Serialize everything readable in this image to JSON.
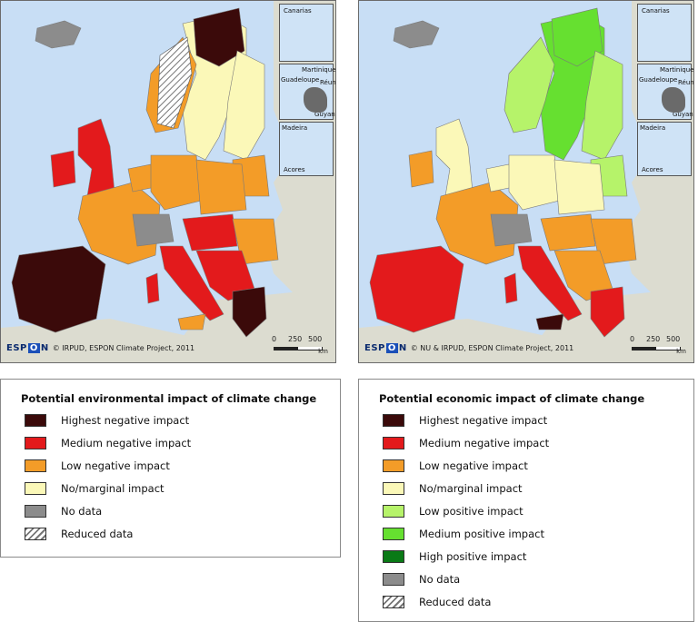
{
  "colors": {
    "sea": "#c8def5",
    "non_espon_land": "#dcdcd0",
    "highest_negative": "#3b0a0a",
    "medium_negative": "#e31a1c",
    "low_negative": "#f39c28",
    "marginal": "#fbf8b8",
    "low_positive": "#b6f36a",
    "medium_positive": "#66e030",
    "high_positive": "#0a7a16",
    "no_data": "#8c8c8c"
  },
  "maps": [
    {
      "id": "environmental",
      "credit": "© IRPUD, ESPON Climate Project, 2011",
      "logo": {
        "pre": "ESP",
        "o": "O",
        "post": "N"
      },
      "insets": [
        "Canarias",
        "Guadeloupe",
        "Martinique",
        "Réunion",
        "Guyane",
        "Madeira",
        "Acores"
      ],
      "scale": {
        "ticks": [
          "0",
          "250",
          "500"
        ],
        "unit": "km"
      },
      "regions": {
        "iberia": "highest_negative",
        "france": "low_negative",
        "uk": "medium_negative",
        "ireland": "medium_negative",
        "benelux": "low_negative",
        "germany": "low_negative",
        "alps": "no_data",
        "poland": "low_negative",
        "italy": "medium_negative",
        "balkans": "medium_negative",
        "greece": "highest_negative",
        "scandinavia": "marginal",
        "norway_coast": "low_negative",
        "finland": "marginal",
        "lapland": "highest_negative",
        "baltic": "low_negative",
        "hungary": "medium_negative",
        "romania": "low_negative",
        "iceland": "no_data",
        "sardinia": "medium_negative",
        "sicily": "low_negative"
      }
    },
    {
      "id": "economic",
      "credit": "© NU & IRPUD, ESPON Climate Project, 2011",
      "logo": {
        "pre": "ESP",
        "o": "O",
        "post": "N"
      },
      "insets": [
        "Canarias",
        "Guadeloupe",
        "Martinique",
        "Réunion",
        "Guyane",
        "Madeira",
        "Acores"
      ],
      "scale": {
        "ticks": [
          "0",
          "250",
          "500"
        ],
        "unit": "km"
      },
      "regions": {
        "iberia": "medium_negative",
        "france": "low_negative",
        "uk": "marginal",
        "ireland": "low_negative",
        "benelux": "marginal",
        "germany": "marginal",
        "alps": "no_data",
        "poland": "marginal",
        "italy": "medium_negative",
        "balkans": "low_negative",
        "greece": "medium_negative",
        "scandinavia": "medium_positive",
        "norway_coast": "low_positive",
        "finland": "low_positive",
        "lapland": "medium_positive",
        "baltic": "low_positive",
        "hungary": "low_negative",
        "romania": "low_negative",
        "iceland": "no_data",
        "sardinia": "medium_negative",
        "sicily": "highest_negative"
      }
    }
  ],
  "legends": [
    {
      "title": "Potential environmental impact of climate change",
      "items": [
        {
          "label": "Highest negative impact",
          "color": "#3b0a0a"
        },
        {
          "label": "Medium negative impact",
          "color": "#e31a1c"
        },
        {
          "label": "Low negative impact",
          "color": "#f39c28"
        },
        {
          "label": "No/marginal impact",
          "color": "#fbf8b8"
        },
        {
          "label": "No data",
          "color": "#8c8c8c"
        },
        {
          "label": "Reduced data",
          "color": "hatch"
        }
      ]
    },
    {
      "title": "Potential economic impact of climate change",
      "items": [
        {
          "label": "Highest negative impact",
          "color": "#3b0a0a"
        },
        {
          "label": "Medium negative impact",
          "color": "#e31a1c"
        },
        {
          "label": "Low negative impact",
          "color": "#f39c28"
        },
        {
          "label": "No/marginal impact",
          "color": "#fbf8b8"
        },
        {
          "label": "Low positive impact",
          "color": "#b6f36a"
        },
        {
          "label": "Medium positive impact",
          "color": "#66e030"
        },
        {
          "label": "High positive impact",
          "color": "#0a7a16"
        },
        {
          "label": "No data",
          "color": "#8c8c8c"
        },
        {
          "label": "Reduced data",
          "color": "hatch"
        }
      ]
    }
  ]
}
